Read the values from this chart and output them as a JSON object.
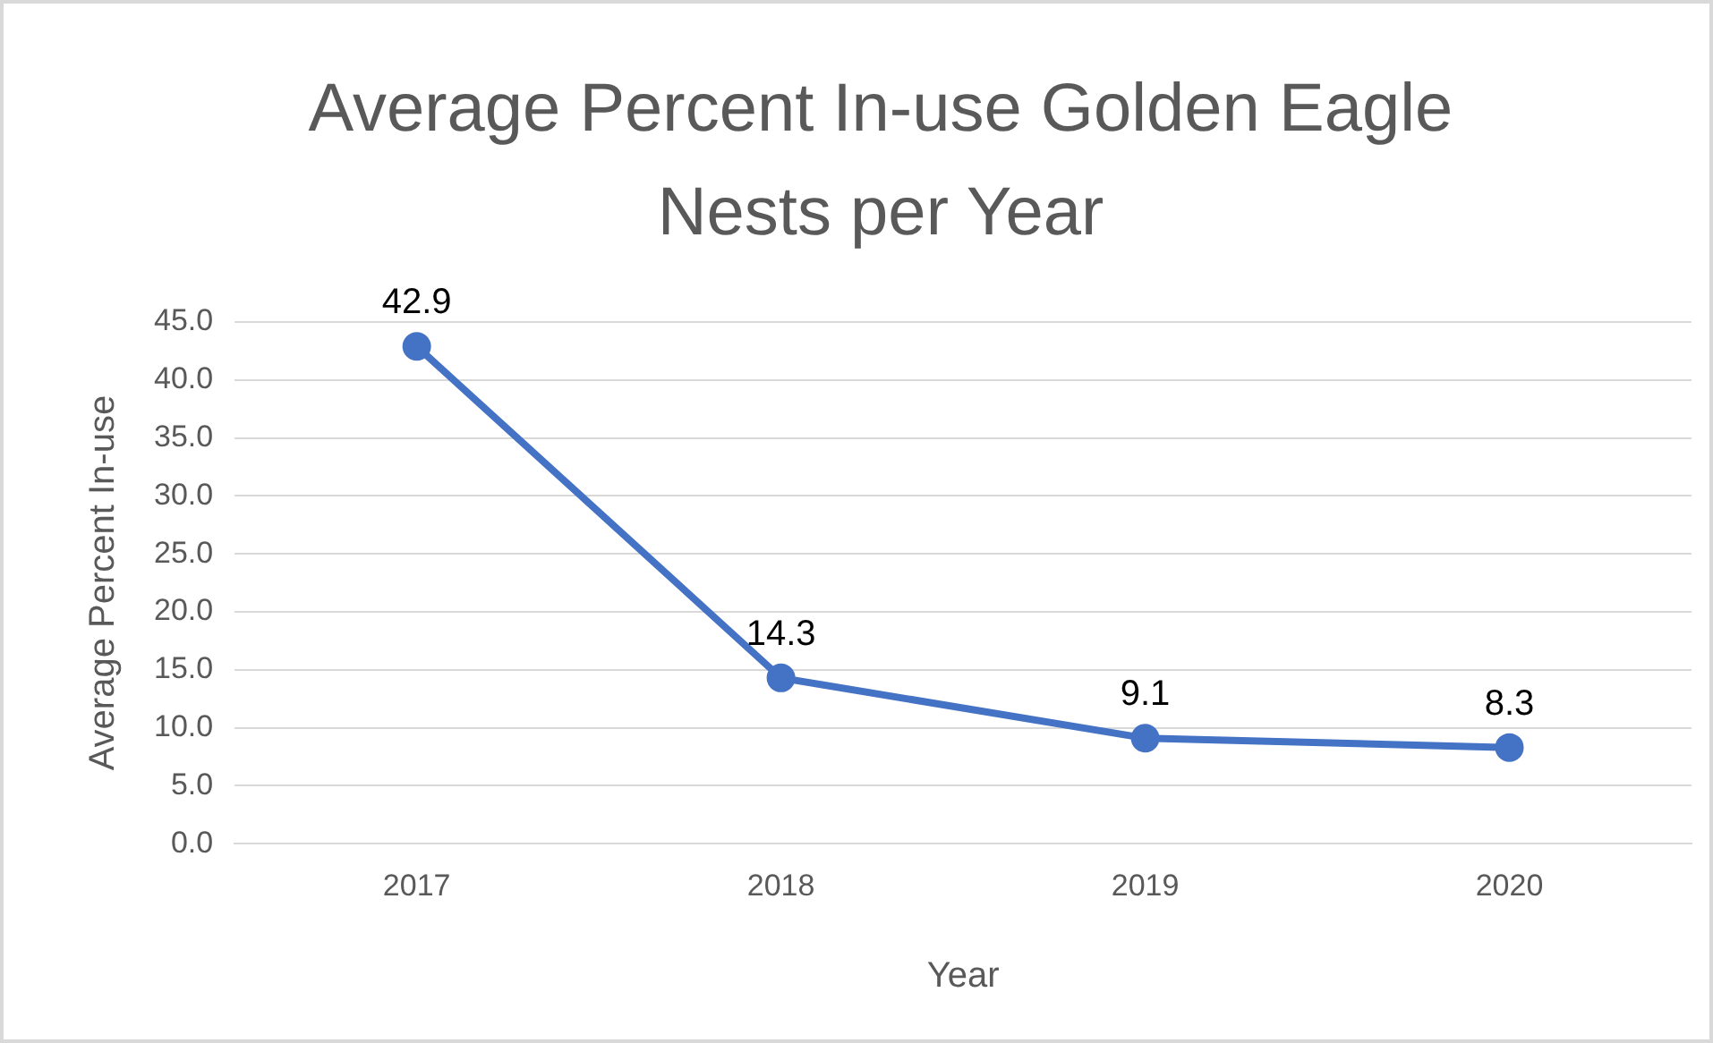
{
  "chart_data": {
    "type": "line",
    "title": "Average Percent In-use Golden Eagle Nests per Year",
    "xlabel": "Year",
    "ylabel": "Average Percent In-use",
    "categories": [
      "2017",
      "2018",
      "2019",
      "2020"
    ],
    "series": [
      {
        "color": "#4472c4",
        "values": [
          42.9,
          14.3,
          9.1,
          8.3
        ]
      }
    ],
    "ylim": [
      0,
      45
    ],
    "yticks": [
      {
        "value": 0,
        "label": "0.0"
      },
      {
        "value": 5,
        "label": "5.0"
      },
      {
        "value": 10,
        "label": "10.0"
      },
      {
        "value": 15,
        "label": "15.0"
      },
      {
        "value": 20,
        "label": "20.0"
      },
      {
        "value": 25,
        "label": "25.0"
      },
      {
        "value": 30,
        "label": "30.0"
      },
      {
        "value": 35,
        "label": "35.0"
      },
      {
        "value": 40,
        "label": "40.0"
      },
      {
        "value": 45,
        "label": "45.0"
      }
    ],
    "grid": "y",
    "marker": "circle",
    "line_style": "solid",
    "data_labels": true,
    "legend": false
  }
}
